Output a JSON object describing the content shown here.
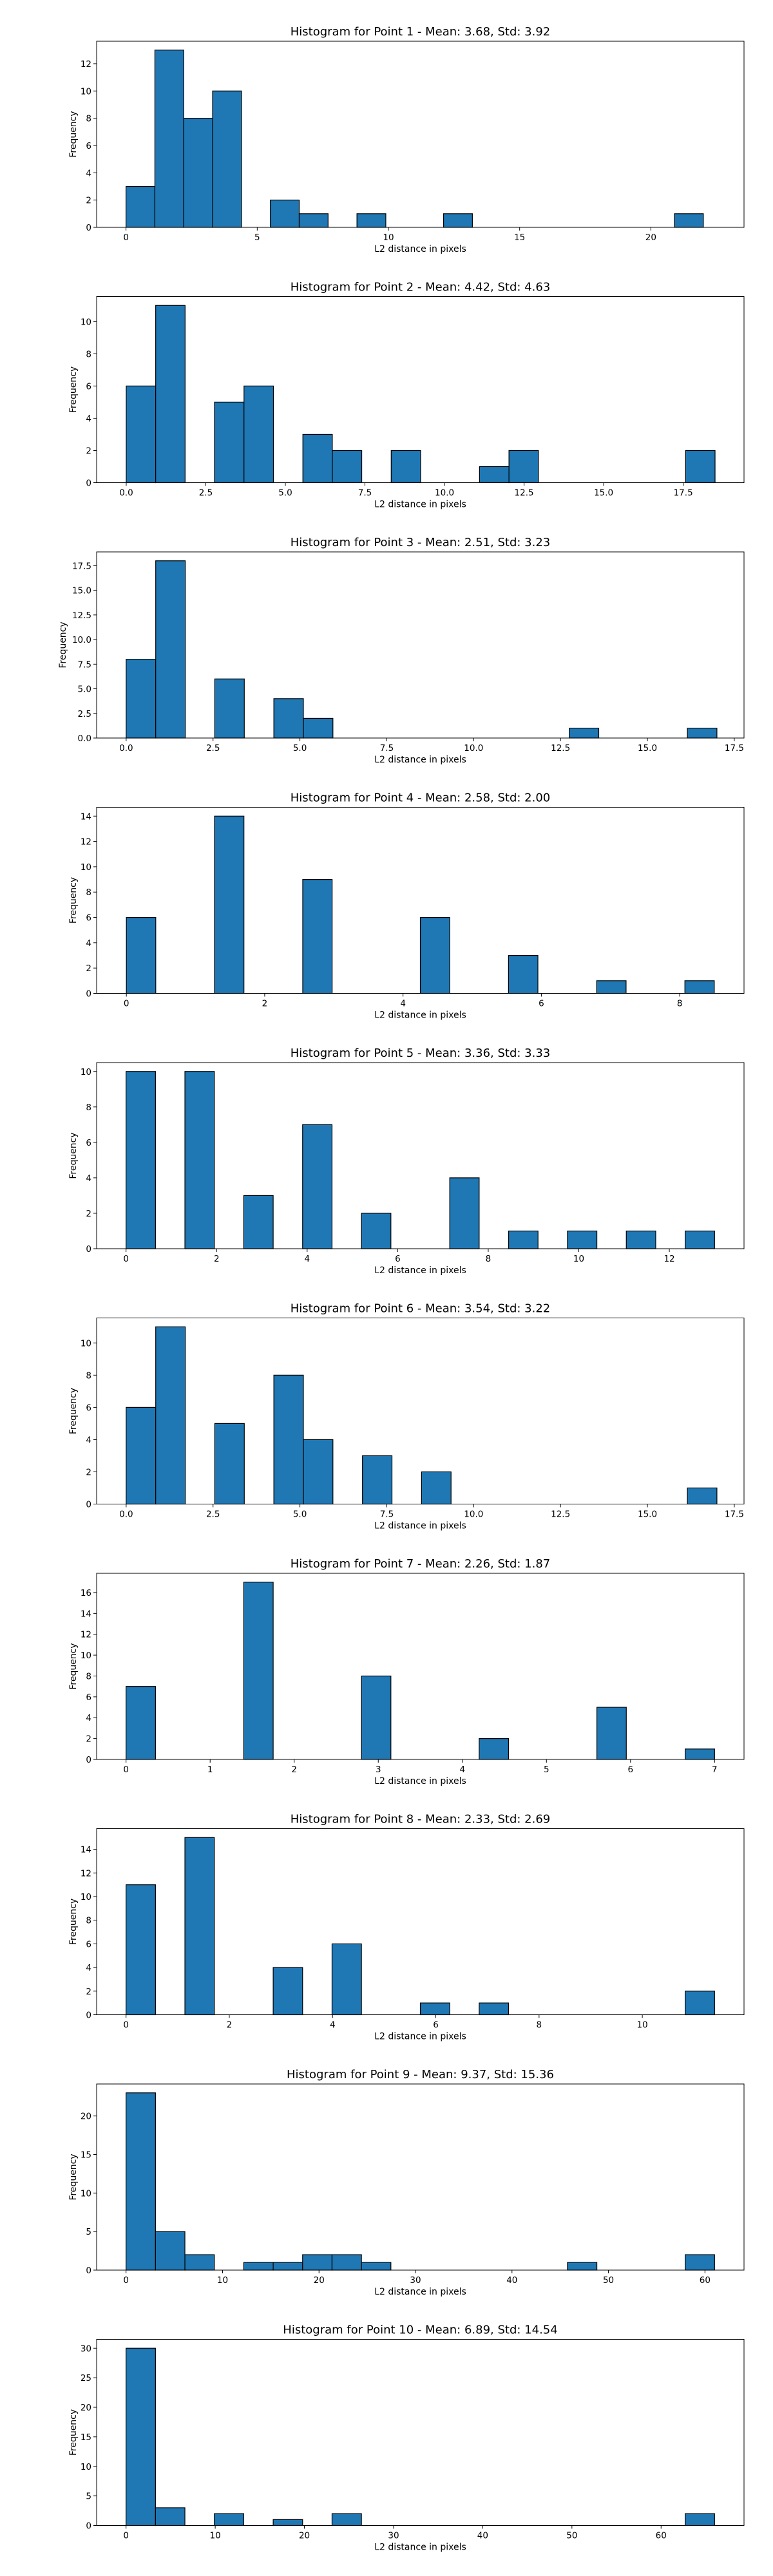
{
  "colors": {
    "bar_fill": "#1f77b4",
    "bar_edge": "#000000",
    "axes": "#000000",
    "background": "#ffffff"
  },
  "chart_data": [
    {
      "type": "bar",
      "title": "Histogram for Point 1 - Mean: 3.68, Std: 3.92",
      "xlabel": "L2 distance in pixels",
      "ylabel": "Frequency",
      "xlim": [
        -1.12,
        23.55
      ],
      "ylim": [
        0,
        13.65
      ],
      "xticks": [
        0,
        5,
        10,
        15,
        20
      ],
      "yticks": [
        0,
        2,
        4,
        6,
        8,
        10,
        12
      ],
      "bins": [
        [
          0.0,
          1.1,
          3
        ],
        [
          1.1,
          2.2,
          13
        ],
        [
          2.2,
          3.3,
          8
        ],
        [
          3.3,
          4.4,
          10
        ],
        [
          5.5,
          6.6,
          2
        ],
        [
          6.6,
          7.7,
          1
        ],
        [
          8.8,
          9.9,
          1
        ],
        [
          12.1,
          13.2,
          1
        ],
        [
          20.9,
          22.0,
          1
        ]
      ]
    },
    {
      "type": "bar",
      "title": "Histogram for Point 2 - Mean: 4.42, Std: 4.63",
      "xlabel": "L2 distance in pixels",
      "ylabel": "Frequency",
      "xlim": [
        -0.93,
        19.41
      ],
      "ylim": [
        0,
        11.55
      ],
      "xticks": [
        0.0,
        2.5,
        5.0,
        7.5,
        10.0,
        12.5,
        15.0,
        17.5
      ],
      "xtick_labels": [
        "0.0",
        "2.5",
        "5.0",
        "7.5",
        "10.0",
        "12.5",
        "15.0",
        "17.5"
      ],
      "yticks": [
        0,
        2,
        4,
        6,
        8,
        10
      ],
      "bins": [
        [
          0.0,
          0.925,
          6
        ],
        [
          0.925,
          1.85,
          11
        ],
        [
          2.775,
          3.7,
          5
        ],
        [
          3.7,
          4.625,
          6
        ],
        [
          5.55,
          6.475,
          3
        ],
        [
          6.475,
          7.4,
          2
        ],
        [
          8.325,
          9.25,
          2
        ],
        [
          11.1,
          12.025,
          1
        ],
        [
          12.025,
          12.95,
          2
        ],
        [
          17.575,
          18.5,
          2
        ]
      ]
    },
    {
      "type": "bar",
      "title": "Histogram for Point 3 - Mean: 2.51, Std: 3.23",
      "xlabel": "L2 distance in pixels",
      "ylabel": "Frequency",
      "xlim": [
        -0.85,
        17.78
      ],
      "ylim": [
        0,
        18.9
      ],
      "xticks": [
        0.0,
        2.5,
        5.0,
        7.5,
        10.0,
        12.5,
        15.0,
        17.5
      ],
      "xtick_labels": [
        "0.0",
        "2.5",
        "5.0",
        "7.5",
        "10.0",
        "12.5",
        "15.0",
        "17.5"
      ],
      "yticks": [
        0.0,
        2.5,
        5.0,
        7.5,
        10.0,
        12.5,
        15.0,
        17.5
      ],
      "ytick_labels": [
        "0.0",
        "2.5",
        "5.0",
        "7.5",
        "10.0",
        "12.5",
        "15.0",
        "17.5"
      ],
      "bins": [
        [
          0.0,
          0.85,
          8
        ],
        [
          0.85,
          1.7,
          18
        ],
        [
          2.55,
          3.4,
          6
        ],
        [
          4.25,
          5.1,
          4
        ],
        [
          5.1,
          5.95,
          2
        ],
        [
          12.75,
          13.6,
          1
        ],
        [
          16.15,
          17.0,
          1
        ]
      ]
    },
    {
      "type": "bar",
      "title": "Histogram for Point 4 - Mean: 2.58, Std: 2.00",
      "xlabel": "L2 distance in pixels",
      "ylabel": "Frequency",
      "xlim": [
        -0.43,
        8.93
      ],
      "ylim": [
        0,
        14.7
      ],
      "xticks": [
        0,
        2,
        4,
        6,
        8
      ],
      "yticks": [
        0,
        2,
        4,
        6,
        8,
        10,
        12,
        14
      ],
      "bins": [
        [
          0.0,
          0.425,
          6
        ],
        [
          1.275,
          1.7,
          14
        ],
        [
          2.55,
          2.975,
          9
        ],
        [
          4.25,
          4.675,
          6
        ],
        [
          5.525,
          5.95,
          3
        ],
        [
          6.8,
          7.225,
          1
        ],
        [
          8.075,
          8.5,
          1
        ]
      ]
    },
    {
      "type": "bar",
      "title": "Histogram for Point 5 - Mean: 3.36, Std: 3.33",
      "xlabel": "L2 distance in pixels",
      "ylabel": "Frequency",
      "xlim": [
        -0.65,
        13.65
      ],
      "ylim": [
        0,
        10.5
      ],
      "xticks": [
        0,
        2,
        4,
        6,
        8,
        10,
        12
      ],
      "yticks": [
        0,
        2,
        4,
        6,
        8,
        10
      ],
      "bins": [
        [
          0.0,
          0.65,
          10
        ],
        [
          1.3,
          1.95,
          10
        ],
        [
          2.6,
          3.25,
          3
        ],
        [
          3.9,
          4.55,
          7
        ],
        [
          5.2,
          5.85,
          2
        ],
        [
          7.15,
          7.8,
          4
        ],
        [
          8.45,
          9.1,
          1
        ],
        [
          9.75,
          10.4,
          1
        ],
        [
          11.05,
          11.7,
          1
        ],
        [
          12.35,
          13.0,
          1
        ]
      ]
    },
    {
      "type": "bar",
      "title": "Histogram for Point 6 - Mean: 3.54, Std: 3.22",
      "xlabel": "L2 distance in pixels",
      "ylabel": "Frequency",
      "xlim": [
        -0.85,
        17.78
      ],
      "ylim": [
        0,
        11.55
      ],
      "xticks": [
        0.0,
        2.5,
        5.0,
        7.5,
        10.0,
        12.5,
        15.0,
        17.5
      ],
      "xtick_labels": [
        "0.0",
        "2.5",
        "5.0",
        "7.5",
        "10.0",
        "12.5",
        "15.0",
        "17.5"
      ],
      "yticks": [
        0,
        2,
        4,
        6,
        8,
        10
      ],
      "bins": [
        [
          0.0,
          0.85,
          6
        ],
        [
          0.85,
          1.7,
          11
        ],
        [
          2.55,
          3.4,
          5
        ],
        [
          4.25,
          5.1,
          8
        ],
        [
          5.1,
          5.95,
          4
        ],
        [
          6.8,
          7.65,
          3
        ],
        [
          8.5,
          9.35,
          2
        ],
        [
          16.15,
          17.0,
          1
        ]
      ]
    },
    {
      "type": "bar",
      "title": "Histogram for Point 7 - Mean: 2.26, Std: 1.87",
      "xlabel": "L2 distance in pixels",
      "ylabel": "Frequency",
      "xlim": [
        -0.35,
        7.35
      ],
      "ylim": [
        0,
        17.85
      ],
      "xticks": [
        0,
        1,
        2,
        3,
        4,
        5,
        6,
        7
      ],
      "yticks": [
        0,
        2,
        4,
        6,
        8,
        10,
        12,
        14,
        16
      ],
      "bins": [
        [
          0.0,
          0.35,
          7
        ],
        [
          1.4,
          1.75,
          17
        ],
        [
          2.8,
          3.15,
          8
        ],
        [
          4.2,
          4.55,
          2
        ],
        [
          5.6,
          5.95,
          5
        ],
        [
          6.65,
          7.0,
          1
        ]
      ]
    },
    {
      "type": "bar",
      "title": "Histogram for Point 8 - Mean: 2.33, Std: 2.69",
      "xlabel": "L2 distance in pixels",
      "ylabel": "Frequency",
      "xlim": [
        -0.57,
        11.97
      ],
      "ylim": [
        0,
        15.75
      ],
      "xticks": [
        0,
        2,
        4,
        6,
        8,
        10
      ],
      "yticks": [
        0,
        2,
        4,
        6,
        8,
        10,
        12,
        14
      ],
      "bins": [
        [
          0.0,
          0.57,
          11
        ],
        [
          1.14,
          1.71,
          15
        ],
        [
          2.85,
          3.42,
          4
        ],
        [
          3.99,
          4.56,
          6
        ],
        [
          5.7,
          6.27,
          1
        ],
        [
          6.84,
          7.41,
          1
        ],
        [
          10.83,
          11.4,
          2
        ]
      ]
    },
    {
      "type": "bar",
      "title": "Histogram for Point 9 - Mean: 9.37, Std: 15.36",
      "xlabel": "L2 distance in pixels",
      "ylabel": "Frequency",
      "xlim": [
        -3.05,
        64.05
      ],
      "ylim": [
        0,
        24.15
      ],
      "xticks": [
        0,
        10,
        20,
        30,
        40,
        50,
        60
      ],
      "yticks": [
        0,
        5,
        10,
        15,
        20
      ],
      "bins": [
        [
          0.0,
          3.05,
          23
        ],
        [
          3.05,
          6.1,
          5
        ],
        [
          6.1,
          9.15,
          2
        ],
        [
          12.2,
          15.25,
          1
        ],
        [
          15.25,
          18.3,
          1
        ],
        [
          18.3,
          21.35,
          2
        ],
        [
          21.35,
          24.4,
          2
        ],
        [
          24.4,
          27.45,
          1
        ],
        [
          45.75,
          48.8,
          1
        ],
        [
          57.95,
          61.0,
          2
        ]
      ]
    },
    {
      "type": "bar",
      "title": "Histogram for Point 10 - Mean: 6.89, Std: 14.54",
      "xlabel": "L2 distance in pixels",
      "ylabel": "Frequency",
      "xlim": [
        -3.3,
        69.3
      ],
      "ylim": [
        0,
        31.5
      ],
      "xticks": [
        0,
        10,
        20,
        30,
        40,
        50,
        60
      ],
      "yticks": [
        0,
        5,
        10,
        15,
        20,
        25,
        30
      ],
      "bins": [
        [
          0.0,
          3.3,
          30
        ],
        [
          3.3,
          6.6,
          3
        ],
        [
          9.9,
          13.2,
          2
        ],
        [
          16.5,
          19.8,
          1
        ],
        [
          23.1,
          26.4,
          2
        ],
        [
          62.7,
          66.0,
          2
        ]
      ]
    }
  ]
}
